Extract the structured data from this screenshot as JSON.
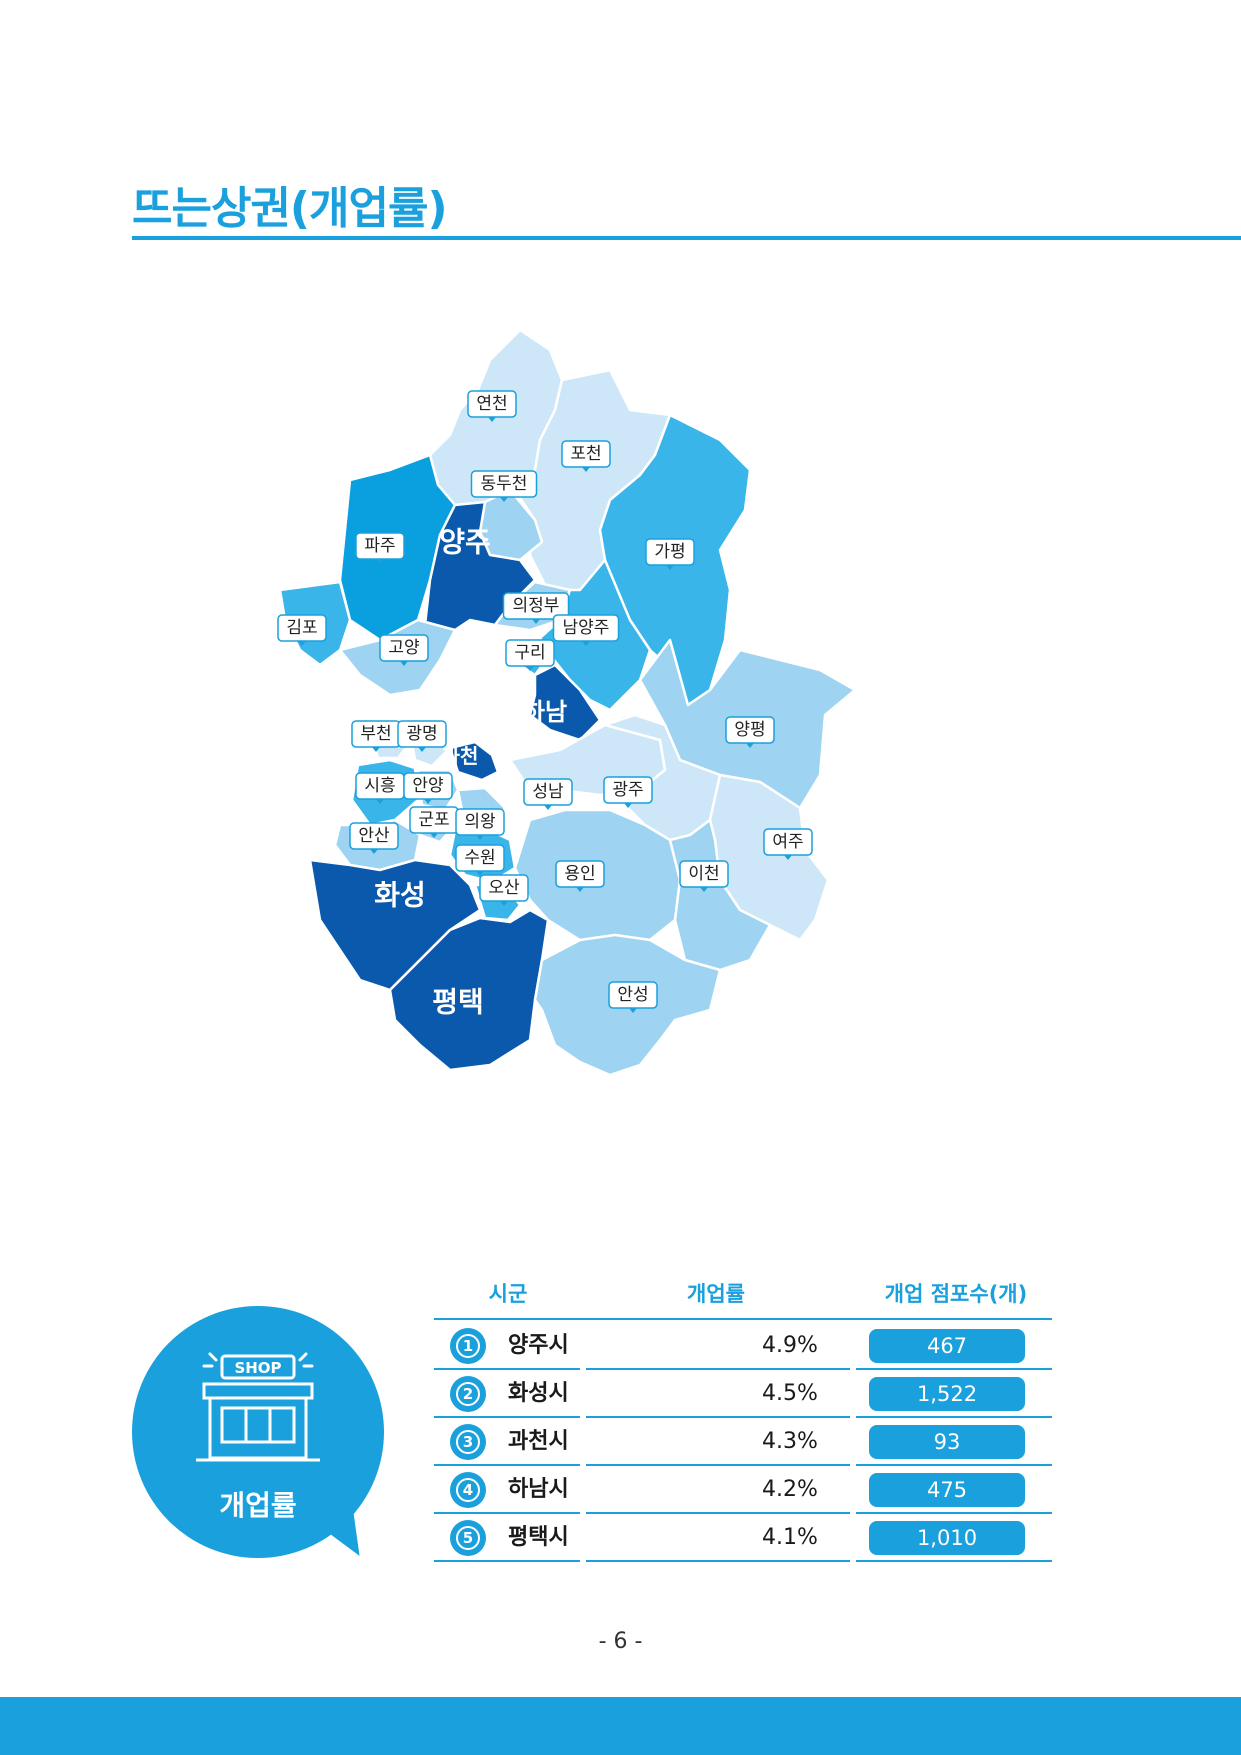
{
  "title": "뜨는상권(개업률)",
  "colors": {
    "accent": "#1aa0dc",
    "level_1": "#cde7f8",
    "level_2": "#9ed3f1",
    "level_3": "#39b5ea",
    "level_4": "#0aa0e0",
    "level_5": "#0a59ac"
  },
  "map": {
    "regions": [
      {
        "name": "연천",
        "level": 1
      },
      {
        "name": "포천",
        "level": 1
      },
      {
        "name": "동두천",
        "level": 2
      },
      {
        "name": "가평",
        "level": 3
      },
      {
        "name": "파주",
        "level": 4
      },
      {
        "name": "양주",
        "level": 5
      },
      {
        "name": "김포",
        "level": 3
      },
      {
        "name": "고양",
        "level": 2
      },
      {
        "name": "의정부",
        "level": 2
      },
      {
        "name": "남양주",
        "level": 3
      },
      {
        "name": "구리",
        "level": 3
      },
      {
        "name": "하남",
        "level": 5
      },
      {
        "name": "양평",
        "level": 2
      },
      {
        "name": "부천",
        "level": 1
      },
      {
        "name": "광명",
        "level": 1
      },
      {
        "name": "과천",
        "level": 5
      },
      {
        "name": "시흥",
        "level": 3
      },
      {
        "name": "안양",
        "level": 2
      },
      {
        "name": "성남",
        "level": 1
      },
      {
        "name": "광주",
        "level": 1
      },
      {
        "name": "군포",
        "level": 2
      },
      {
        "name": "의왕",
        "level": 2
      },
      {
        "name": "안산",
        "level": 2
      },
      {
        "name": "수원",
        "level": 3
      },
      {
        "name": "여주",
        "level": 1
      },
      {
        "name": "용인",
        "level": 2
      },
      {
        "name": "이천",
        "level": 2
      },
      {
        "name": "화성",
        "level": 5
      },
      {
        "name": "오산",
        "level": 3
      },
      {
        "name": "평택",
        "level": 5
      },
      {
        "name": "안성",
        "level": 2
      }
    ]
  },
  "badge": {
    "icon": "shop-icon",
    "shop_text": "SHOP",
    "label": "개업률"
  },
  "table": {
    "headers": [
      "시군",
      "개업률",
      "개업 점포수(개)"
    ],
    "rows": [
      {
        "rank": "1",
        "city": "양주시",
        "rate": "4.9%",
        "count": "467"
      },
      {
        "rank": "2",
        "city": "화성시",
        "rate": "4.5%",
        "count": "1,522"
      },
      {
        "rank": "3",
        "city": "과천시",
        "rate": "4.3%",
        "count": "93"
      },
      {
        "rank": "4",
        "city": "하남시",
        "rate": "4.2%",
        "count": "475"
      },
      {
        "rank": "5",
        "city": "평택시",
        "rate": "4.1%",
        "count": "1,010"
      }
    ]
  },
  "page_number": "- 6 -"
}
